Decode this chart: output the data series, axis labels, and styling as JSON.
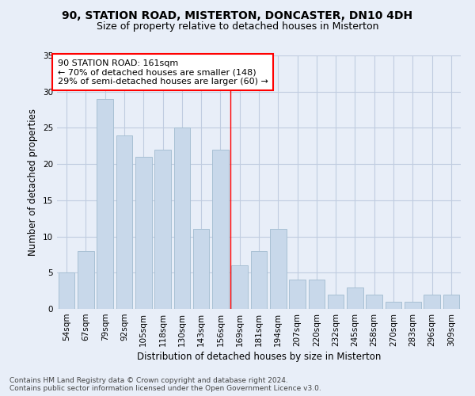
{
  "title": "90, STATION ROAD, MISTERTON, DONCASTER, DN10 4DH",
  "subtitle": "Size of property relative to detached houses in Misterton",
  "xlabel": "Distribution of detached houses by size in Misterton",
  "ylabel": "Number of detached properties",
  "categories": [
    "54sqm",
    "67sqm",
    "79sqm",
    "92sqm",
    "105sqm",
    "118sqm",
    "130sqm",
    "143sqm",
    "156sqm",
    "169sqm",
    "181sqm",
    "194sqm",
    "207sqm",
    "220sqm",
    "232sqm",
    "245sqm",
    "258sqm",
    "270sqm",
    "283sqm",
    "296sqm",
    "309sqm"
  ],
  "values": [
    5,
    8,
    29,
    24,
    21,
    22,
    25,
    11,
    22,
    6,
    8,
    11,
    4,
    4,
    2,
    3,
    2,
    1,
    1,
    2,
    2
  ],
  "bar_color": "#c8d8ea",
  "bar_edge_color": "#a8c0d4",
  "grid_color": "#c0cce0",
  "background_color": "#e8eef8",
  "vline_x": 8.5,
  "vline_color": "red",
  "annotation_text": "90 STATION ROAD: 161sqm\n← 70% of detached houses are smaller (148)\n29% of semi-detached houses are larger (60) →",
  "annotation_box_color": "white",
  "annotation_box_edge": "red",
  "ylim": [
    0,
    35
  ],
  "yticks": [
    0,
    5,
    10,
    15,
    20,
    25,
    30,
    35
  ],
  "footer1": "Contains HM Land Registry data © Crown copyright and database right 2024.",
  "footer2": "Contains public sector information licensed under the Open Government Licence v3.0.",
  "title_fontsize": 10,
  "subtitle_fontsize": 9,
  "ylabel_fontsize": 8.5,
  "xlabel_fontsize": 8.5,
  "tick_fontsize": 7.5,
  "annotation_fontsize": 8,
  "footer_fontsize": 6.5
}
